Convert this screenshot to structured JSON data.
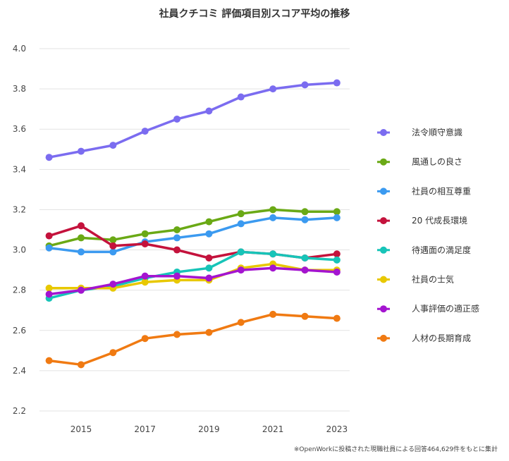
{
  "chart_data": {
    "type": "line",
    "title": "社員クチコミ 評価項目別スコア平均の推移",
    "xlabel": "",
    "ylabel": "",
    "x": [
      2014,
      2015,
      2016,
      2017,
      2018,
      2019,
      2020,
      2021,
      2022,
      2023
    ],
    "x_tick_labels": [
      "2015",
      "2017",
      "2019",
      "2021",
      "2023"
    ],
    "x_tick_values": [
      2015,
      2017,
      2019,
      2021,
      2023
    ],
    "y_tick_labels": [
      "2.2",
      "2.4",
      "2.6",
      "2.8",
      "3.0",
      "3.2",
      "3.4",
      "3.6",
      "3.8",
      "4.0"
    ],
    "ylim": [
      2.2,
      4.0
    ],
    "xlim": [
      2013.7,
      2023.4
    ],
    "grid": "horizontal",
    "legend_position": "right",
    "footnote": "※OpenWorkに投稿された現職社員による回答464,629件をもとに集計",
    "series": [
      {
        "name": "法令順守意識",
        "color": "#7b6cf0",
        "values": [
          3.46,
          3.49,
          3.52,
          3.59,
          3.65,
          3.69,
          3.76,
          3.8,
          3.82,
          3.83
        ]
      },
      {
        "name": "風通しの良さ",
        "color": "#6aa915",
        "values": [
          3.02,
          3.06,
          3.05,
          3.08,
          3.1,
          3.14,
          3.18,
          3.2,
          3.19,
          3.19
        ]
      },
      {
        "name": "社員の相互尊重",
        "color": "#3b9af0",
        "values": [
          3.01,
          2.99,
          2.99,
          3.04,
          3.06,
          3.08,
          3.13,
          3.16,
          3.15,
          3.16
        ]
      },
      {
        "name": "20 代成長環境",
        "color": "#c4123c",
        "values": [
          3.07,
          3.12,
          3.02,
          3.03,
          3.0,
          2.96,
          2.99,
          2.98,
          2.96,
          2.98
        ]
      },
      {
        "name": "待遇面の満足度",
        "color": "#17c4b8",
        "values": [
          2.76,
          2.8,
          2.82,
          2.86,
          2.89,
          2.91,
          2.99,
          2.98,
          2.96,
          2.95
        ]
      },
      {
        "name": "社員の士気",
        "color": "#e8c800",
        "values": [
          2.81,
          2.81,
          2.81,
          2.84,
          2.85,
          2.85,
          2.91,
          2.93,
          2.9,
          2.9
        ]
      },
      {
        "name": "人事評価の適正感",
        "color": "#a414d0",
        "values": [
          2.78,
          2.8,
          2.83,
          2.87,
          2.87,
          2.86,
          2.9,
          2.91,
          2.9,
          2.89
        ]
      },
      {
        "name": "人材の長期育成",
        "color": "#f07a12",
        "values": [
          2.45,
          2.43,
          2.49,
          2.56,
          2.58,
          2.59,
          2.64,
          2.68,
          2.67,
          2.66
        ]
      }
    ]
  }
}
